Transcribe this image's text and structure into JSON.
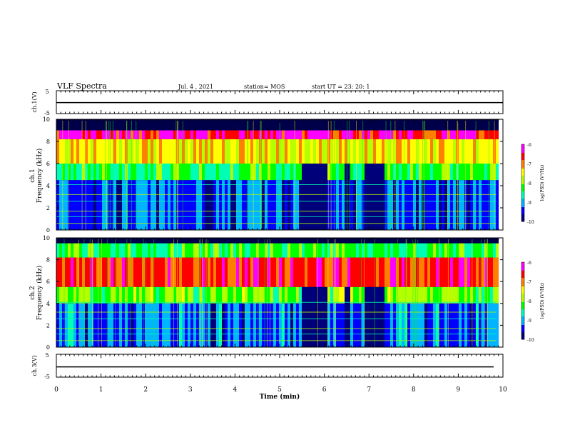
{
  "header": {
    "title": "VLF Spectra",
    "date": "Jul. 4 , 2021",
    "station": "station= MOS",
    "start_ut": "start UT =  23: 20: 1"
  },
  "chart_data": [
    {
      "type": "line",
      "name_key": "ch1_waveform",
      "ylabel": "ch.1(V)",
      "ylim": [
        -5,
        5
      ],
      "yticks": [
        "5",
        "-5"
      ],
      "x": [
        0,
        10
      ],
      "y": [
        -0.2,
        -0.2
      ],
      "xlim": [
        0,
        10
      ]
    },
    {
      "type": "heatmap",
      "name_key": "ch1_spectrogram",
      "ylabel": "ch.1",
      "ylabel2": "Frequency (kHz)",
      "ylim": [
        0,
        10
      ],
      "yticks": [
        "0",
        "2",
        "4",
        "6",
        "8",
        "10"
      ],
      "xlim": [
        0,
        10
      ],
      "colorbar": {
        "label": "log(PSD) (V²/Hz)",
        "ticks": [
          "-6",
          "-7",
          "-8",
          "-9",
          "-10"
        ],
        "range": [
          -10,
          -6
        ]
      },
      "bands_khz": [
        {
          "f_low": 8.2,
          "f_high": 9.0,
          "level": -6.5
        },
        {
          "f_low": 6.0,
          "f_high": 8.2,
          "level": -7.4
        },
        {
          "f_low": 4.5,
          "f_high": 6.0,
          "level": -8.3
        },
        {
          "f_low": 0.0,
          "f_high": 4.5,
          "level": -9.3
        }
      ],
      "quiet_intervals_min": [
        [
          5.45,
          6.05
        ],
        [
          6.4,
          6.55
        ],
        [
          6.85,
          7.3
        ]
      ],
      "data_end_min": 9.85
    },
    {
      "type": "heatmap",
      "name_key": "ch2_spectrogram",
      "ylabel": "ch.2",
      "ylabel2": "Frequency (kHz)",
      "ylim": [
        0,
        10
      ],
      "yticks": [
        "0",
        "2",
        "4",
        "6",
        "8",
        "10"
      ],
      "xlim": [
        0,
        10
      ],
      "colorbar": {
        "label": "log(PSD) (V²/Hz)",
        "ticks": [
          "-6",
          "-7",
          "-8",
          "-9",
          "-10"
        ],
        "range": [
          -10,
          -6
        ]
      },
      "bands_khz": [
        {
          "f_low": 8.2,
          "f_high": 9.5,
          "level": -8.3
        },
        {
          "f_low": 5.5,
          "f_high": 8.2,
          "level": -6.7
        },
        {
          "f_low": 4.0,
          "f_high": 5.5,
          "level": -8.0
        },
        {
          "f_low": 0.0,
          "f_high": 4.0,
          "level": -9.2
        }
      ],
      "quiet_intervals_min": [
        [
          5.45,
          6.05
        ],
        [
          6.4,
          6.55
        ],
        [
          6.85,
          7.3
        ]
      ],
      "data_end_min": 9.85
    },
    {
      "type": "line",
      "name_key": "ch3_waveform",
      "ylabel": "ch.3(V)",
      "ylim": [
        -5,
        5
      ],
      "yticks": [
        "5",
        "-5"
      ],
      "x": [
        0,
        10
      ],
      "y": [
        -0.5,
        -0.5
      ],
      "xlim": [
        0,
        10
      ]
    }
  ],
  "xaxis": {
    "label": "Time (min)",
    "ticks": [
      "0",
      "1",
      "2",
      "3",
      "4",
      "5",
      "6",
      "7",
      "8",
      "9",
      "10"
    ]
  },
  "colors": {
    "spectral": [
      "#00007a",
      "#0000ff",
      "#00b4ff",
      "#00ffb4",
      "#00ff00",
      "#b4ff00",
      "#ffff00",
      "#ff8000",
      "#ff0000",
      "#ff00ff",
      "#ffffff"
    ]
  }
}
